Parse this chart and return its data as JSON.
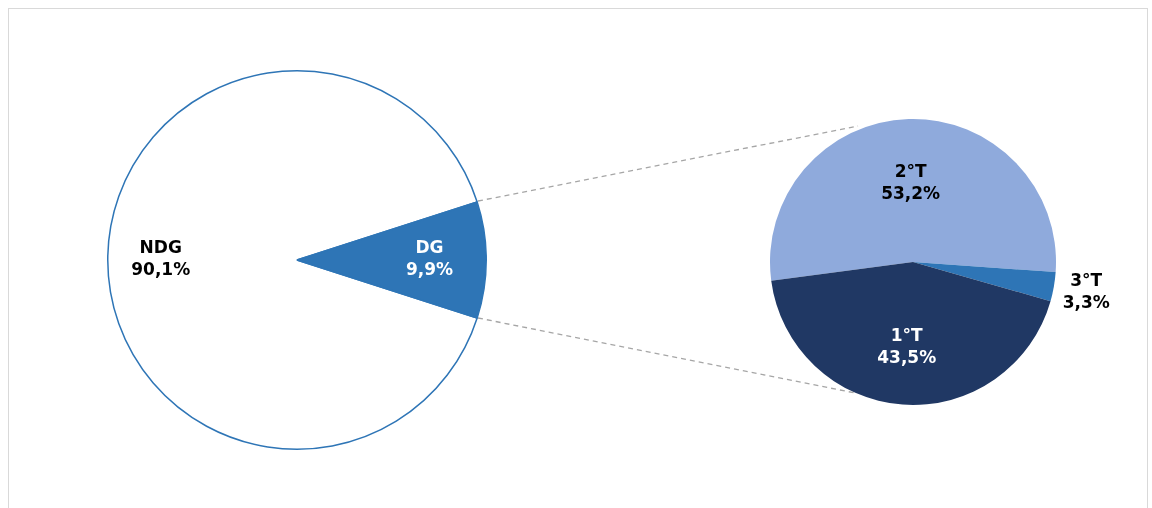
{
  "chart_data": [
    {
      "type": "pie",
      "categories": [
        "NDG",
        "DG"
      ],
      "values": [
        90.1,
        9.9
      ],
      "colors": [
        "#ffffff",
        "#2e75b6"
      ],
      "value_labels": [
        "90,1%",
        "9,9%"
      ]
    },
    {
      "type": "pie",
      "categories": [
        "2°T",
        "3°T",
        "1°T"
      ],
      "values": [
        53.2,
        3.3,
        43.5
      ],
      "colors": [
        "#8faadc",
        "#2e75b6",
        "#203864"
      ],
      "value_labels": [
        "53,2%",
        "3,3%",
        "43,5%"
      ]
    }
  ]
}
